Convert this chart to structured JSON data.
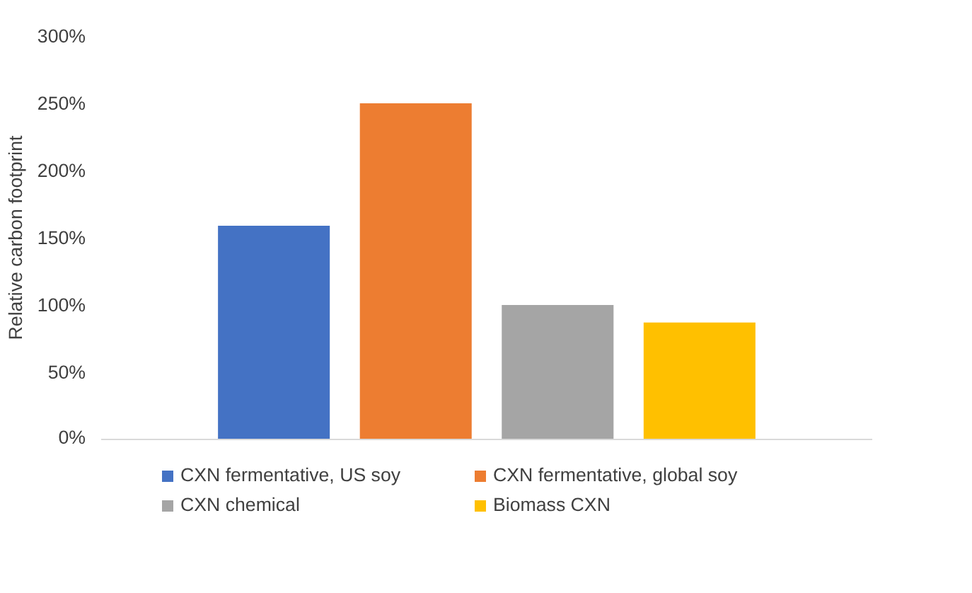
{
  "chart_data": {
    "type": "bar",
    "ylabel": "Relative carbon footprint",
    "categories": [
      null
    ],
    "series": [
      {
        "name": "CXN fermentative, US soy",
        "color": "#4472c4",
        "values": [
          159
        ]
      },
      {
        "name": "CXN fermentative, global soy",
        "color": "#ed7d31",
        "values": [
          250
        ]
      },
      {
        "name": "CXN chemical",
        "color": "#a5a5a5",
        "values": [
          100
        ]
      },
      {
        "name": "Biomass CXN",
        "color": "#ffc000",
        "values": [
          87
        ]
      }
    ],
    "ylim": [
      0,
      300
    ],
    "yticks": [
      {
        "value": 0,
        "label": "0%"
      },
      {
        "value": 50,
        "label": "50%"
      },
      {
        "value": 100,
        "label": "100%"
      },
      {
        "value": 150,
        "label": "150%"
      },
      {
        "value": 200,
        "label": "200%"
      },
      {
        "value": 250,
        "label": "250%"
      },
      {
        "value": 300,
        "label": "300%"
      }
    ],
    "grid": false,
    "legend": "bottom"
  }
}
